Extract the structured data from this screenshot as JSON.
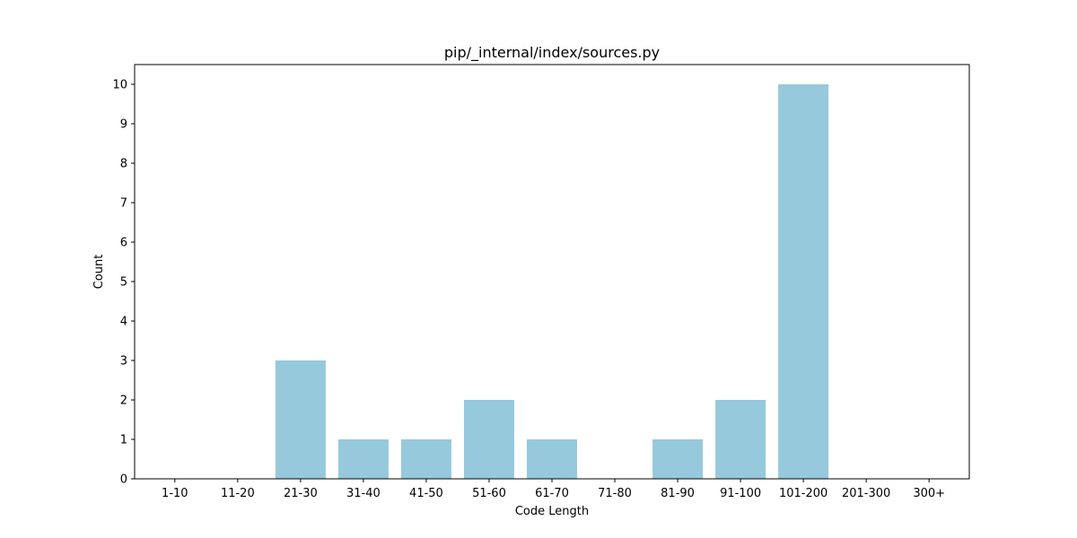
{
  "chart_data": {
    "type": "bar",
    "title": "pip/_internal/index/sources.py",
    "xlabel": "Code Length",
    "ylabel": "Count",
    "categories": [
      "1-10",
      "11-20",
      "21-30",
      "31-40",
      "41-50",
      "51-60",
      "61-70",
      "71-80",
      "81-90",
      "91-100",
      "101-200",
      "201-300",
      "300+"
    ],
    "values": [
      0,
      0,
      3,
      1,
      1,
      2,
      1,
      0,
      1,
      2,
      10,
      0,
      0
    ],
    "ylim": [
      0,
      10.5
    ],
    "yticks": [
      0,
      1,
      2,
      3,
      4,
      5,
      6,
      7,
      8,
      9,
      10
    ],
    "grid": false,
    "bar_color": "#96c9dc"
  }
}
